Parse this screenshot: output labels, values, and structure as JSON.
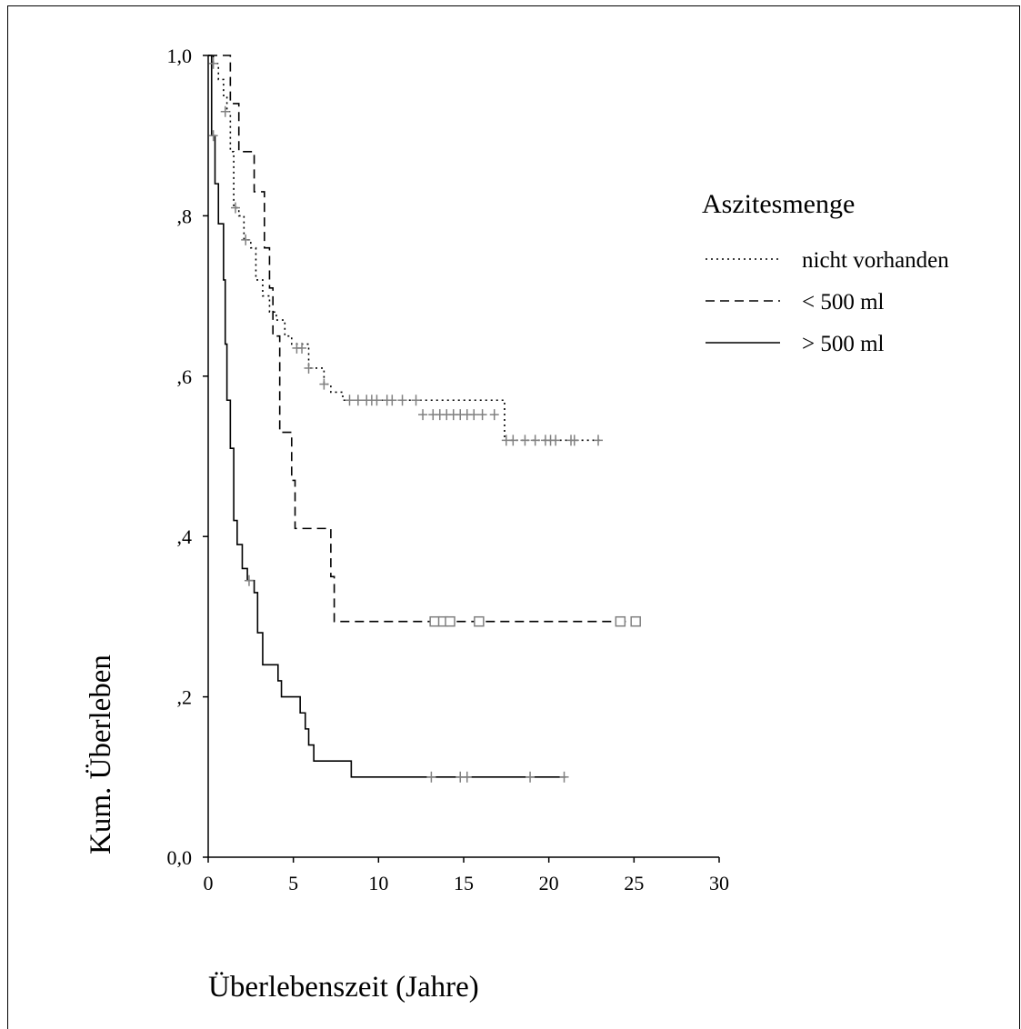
{
  "chart_data": {
    "type": "line",
    "subtype": "kaplan-meier",
    "xlabel": "Überlebenszeit (Jahre)",
    "ylabel": "Kum. Überleben",
    "xlim": [
      0,
      30
    ],
    "ylim": [
      0,
      1
    ],
    "x_ticks": [
      0,
      5,
      10,
      15,
      20,
      25,
      30
    ],
    "x_tick_labels": [
      "0",
      "5",
      "10",
      "15",
      "20",
      "25",
      "30"
    ],
    "y_ticks": [
      0,
      0.2,
      0.4,
      0.6,
      0.8,
      1.0
    ],
    "y_tick_labels": [
      "0,0",
      ",2",
      ",4",
      ",6",
      ",8",
      "1,0"
    ],
    "grid": false,
    "legend": {
      "title": "Aszitesmenge",
      "position": "top-right"
    },
    "series": [
      {
        "name": "nicht vorhanden",
        "style": "dotted",
        "color": "#000000",
        "censor_color": "#808080",
        "censor_marker": "plus",
        "steps": [
          [
            0,
            1.0
          ],
          [
            0.3,
            0.99
          ],
          [
            0.6,
            0.97
          ],
          [
            0.9,
            0.95
          ],
          [
            1.1,
            0.93
          ],
          [
            1.3,
            0.88
          ],
          [
            1.5,
            0.81
          ],
          [
            1.8,
            0.8
          ],
          [
            2.1,
            0.77
          ],
          [
            2.5,
            0.76
          ],
          [
            2.8,
            0.72
          ],
          [
            3.2,
            0.7
          ],
          [
            3.6,
            0.68
          ],
          [
            4.0,
            0.67
          ],
          [
            4.5,
            0.65
          ],
          [
            4.9,
            0.64
          ],
          [
            5.9,
            0.61
          ],
          [
            6.8,
            0.59
          ],
          [
            7.2,
            0.58
          ],
          [
            7.9,
            0.57
          ],
          [
            17.4,
            0.52
          ],
          [
            23.0,
            0.52
          ]
        ],
        "censored": [
          [
            0.3,
            0.99
          ],
          [
            1.0,
            0.93
          ],
          [
            1.6,
            0.81
          ],
          [
            2.2,
            0.77
          ],
          [
            5.2,
            0.635
          ],
          [
            5.5,
            0.635
          ],
          [
            5.9,
            0.61
          ],
          [
            6.8,
            0.59
          ],
          [
            8.3,
            0.57
          ],
          [
            8.8,
            0.57
          ],
          [
            9.3,
            0.57
          ],
          [
            9.6,
            0.57
          ],
          [
            9.9,
            0.57
          ],
          [
            10.5,
            0.57
          ],
          [
            10.8,
            0.57
          ],
          [
            11.4,
            0.57
          ],
          [
            12.2,
            0.57
          ],
          [
            12.6,
            0.552
          ],
          [
            13.2,
            0.552
          ],
          [
            13.6,
            0.552
          ],
          [
            14.0,
            0.552
          ],
          [
            14.4,
            0.552
          ],
          [
            14.8,
            0.552
          ],
          [
            15.2,
            0.552
          ],
          [
            15.6,
            0.552
          ],
          [
            16.1,
            0.552
          ],
          [
            16.8,
            0.552
          ],
          [
            17.5,
            0.52
          ],
          [
            17.9,
            0.52
          ],
          [
            18.6,
            0.52
          ],
          [
            19.2,
            0.52
          ],
          [
            19.8,
            0.52
          ],
          [
            20.1,
            0.52
          ],
          [
            20.4,
            0.52
          ],
          [
            21.3,
            0.52
          ],
          [
            21.5,
            0.52
          ],
          [
            22.9,
            0.52
          ]
        ]
      },
      {
        "name": "< 500 ml",
        "style": "dashed",
        "color": "#000000",
        "censor_color": "#808080",
        "censor_marker": "square",
        "steps": [
          [
            0,
            1.0
          ],
          [
            1.3,
            0.94
          ],
          [
            1.8,
            0.88
          ],
          [
            2.7,
            0.83
          ],
          [
            3.3,
            0.76
          ],
          [
            3.6,
            0.71
          ],
          [
            3.8,
            0.65
          ],
          [
            4.2,
            0.53
          ],
          [
            4.9,
            0.47
          ],
          [
            5.1,
            0.41
          ],
          [
            7.2,
            0.35
          ],
          [
            7.4,
            0.294
          ],
          [
            25.3,
            0.294
          ]
        ],
        "censored": [
          [
            13.3,
            0.294
          ],
          [
            13.8,
            0.294
          ],
          [
            14.2,
            0.294
          ],
          [
            15.9,
            0.294
          ],
          [
            24.2,
            0.294
          ],
          [
            25.1,
            0.294
          ]
        ]
      },
      {
        "name": "> 500 ml",
        "style": "solid",
        "color": "#000000",
        "censor_color": "#808080",
        "censor_marker": "plus",
        "steps": [
          [
            0,
            1.0
          ],
          [
            0.2,
            0.9
          ],
          [
            0.4,
            0.84
          ],
          [
            0.6,
            0.79
          ],
          [
            0.9,
            0.72
          ],
          [
            1.0,
            0.64
          ],
          [
            1.1,
            0.57
          ],
          [
            1.3,
            0.51
          ],
          [
            1.5,
            0.42
          ],
          [
            1.7,
            0.39
          ],
          [
            2.0,
            0.36
          ],
          [
            2.3,
            0.345
          ],
          [
            2.7,
            0.33
          ],
          [
            2.9,
            0.28
          ],
          [
            3.2,
            0.24
          ],
          [
            4.1,
            0.22
          ],
          [
            4.3,
            0.2
          ],
          [
            5.4,
            0.18
          ],
          [
            5.7,
            0.16
          ],
          [
            5.9,
            0.14
          ],
          [
            6.2,
            0.12
          ],
          [
            8.4,
            0.1
          ],
          [
            21.0,
            0.1
          ]
        ],
        "censored": [
          [
            0.3,
            0.9
          ],
          [
            2.4,
            0.345
          ],
          [
            13.1,
            0.1
          ],
          [
            14.8,
            0.1
          ],
          [
            15.2,
            0.1
          ],
          [
            18.9,
            0.1
          ],
          [
            20.9,
            0.1
          ]
        ]
      }
    ]
  }
}
